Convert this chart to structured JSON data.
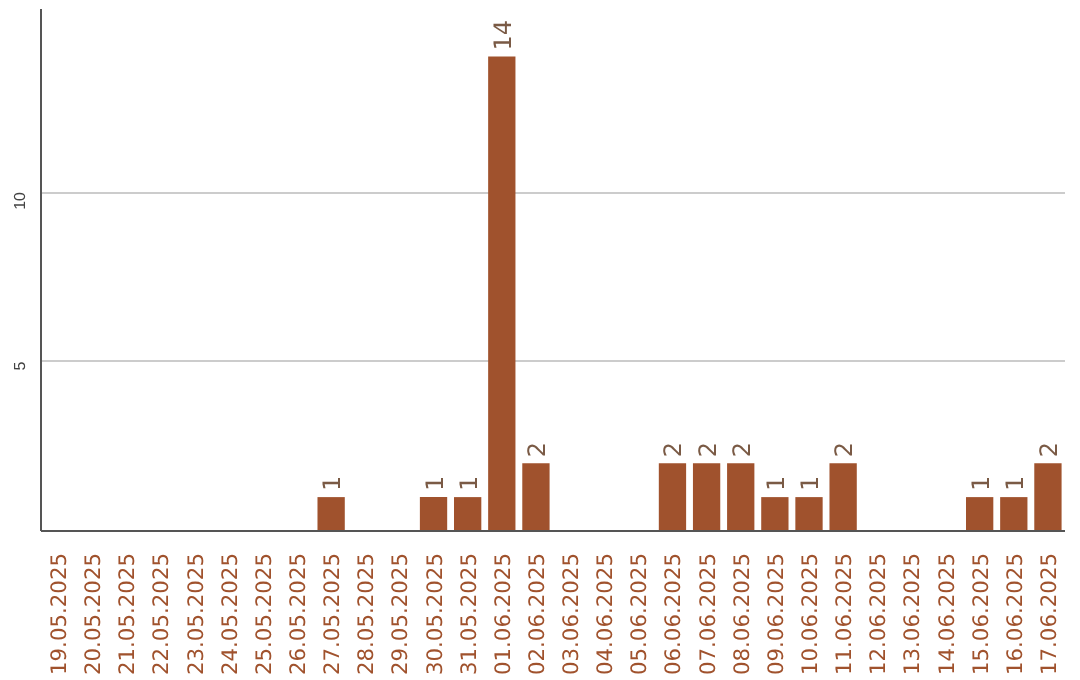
{
  "chart_data": {
    "type": "bar",
    "categories": [
      "19.05.2025",
      "20.05.2025",
      "21.05.2025",
      "22.05.2025",
      "23.05.2025",
      "24.05.2025",
      "25.05.2025",
      "26.05.2025",
      "27.05.2025",
      "28.05.2025",
      "29.05.2025",
      "30.05.2025",
      "31.05.2025",
      "01.06.2025",
      "02.06.2025",
      "03.06.2025",
      "04.06.2025",
      "05.06.2025",
      "06.06.2025",
      "07.06.2025",
      "08.06.2025",
      "09.06.2025",
      "10.06.2025",
      "11.06.2025",
      "12.06.2025",
      "13.06.2025",
      "14.06.2025",
      "15.06.2025",
      "16.06.2025",
      "17.06.2025"
    ],
    "values": [
      0,
      0,
      0,
      0,
      0,
      0,
      0,
      0,
      1,
      0,
      0,
      1,
      1,
      14,
      2,
      0,
      0,
      0,
      2,
      2,
      2,
      1,
      1,
      2,
      0,
      0,
      0,
      1,
      1,
      2
    ],
    "value_labels": [
      null,
      null,
      null,
      null,
      null,
      null,
      null,
      null,
      "1",
      null,
      null,
      "1",
      "1",
      "14",
      "2",
      null,
      null,
      null,
      "2",
      "2",
      "2",
      "1",
      "1",
      "2",
      null,
      null,
      null,
      "1",
      "1",
      "2"
    ],
    "color": "#a0522d",
    "ylim": [
      0,
      15.4
    ],
    "yticks": [
      5,
      10
    ],
    "grid": "y"
  }
}
